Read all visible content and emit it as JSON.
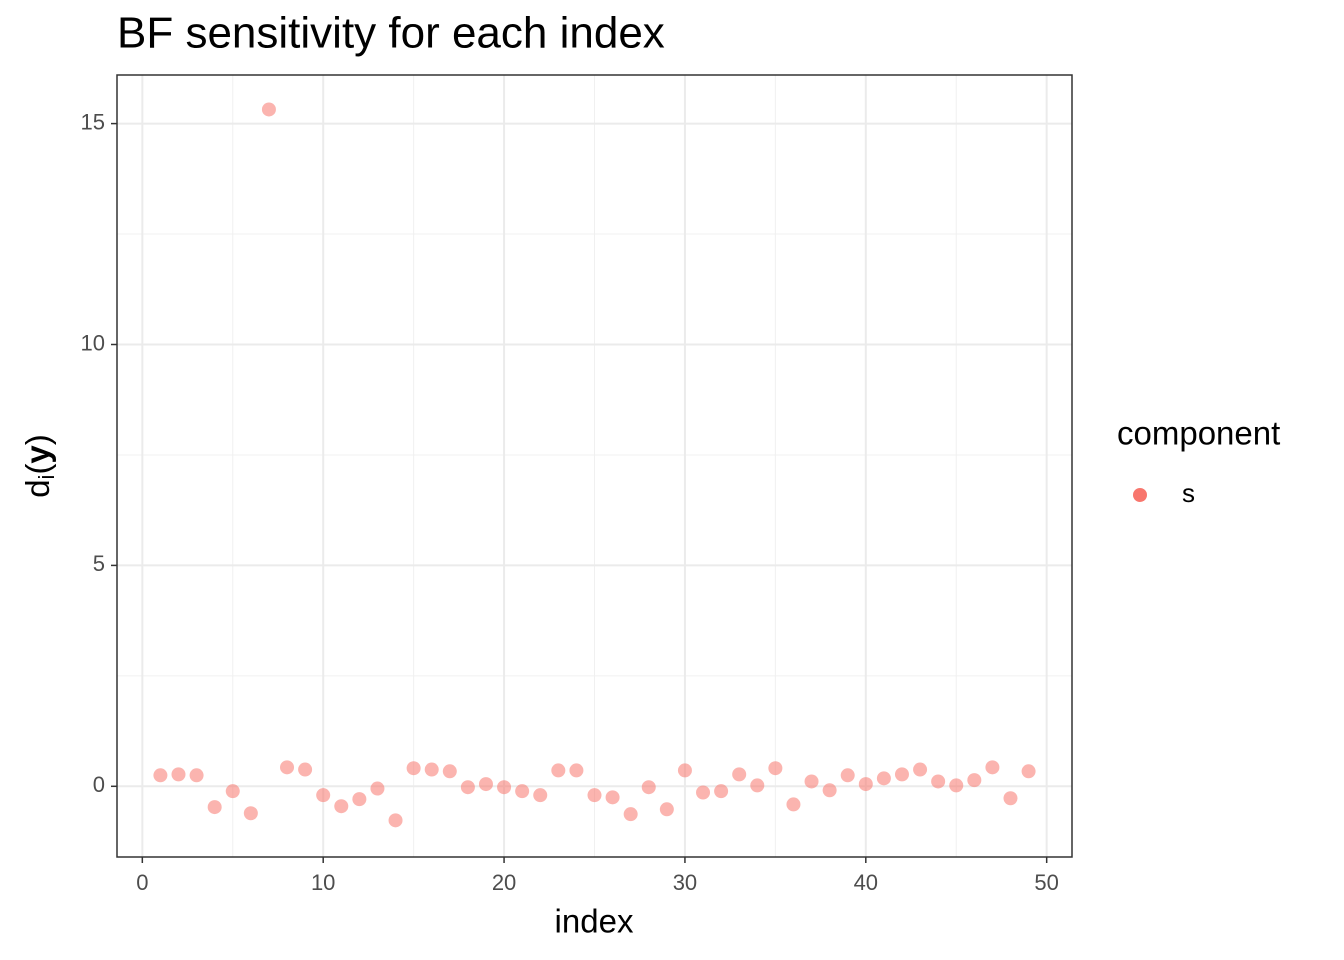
{
  "chart_data": {
    "type": "scatter",
    "title": "BF sensitivity for each index",
    "x_label": "index",
    "y_label_parts": [
      "d",
      "i",
      "(",
      "y",
      ")"
    ],
    "legend_title": "component",
    "legend_position": "right",
    "series": [
      {
        "name": "s",
        "color": "#F8766D",
        "alpha": 0.55,
        "x": [
          1,
          2,
          3,
          4,
          5,
          6,
          7,
          8,
          9,
          10,
          11,
          12,
          13,
          14,
          15,
          16,
          17,
          18,
          19,
          20,
          21,
          22,
          23,
          24,
          25,
          26,
          27,
          28,
          29,
          30,
          31,
          32,
          33,
          34,
          35,
          36,
          37,
          38,
          39,
          40,
          41,
          42,
          43,
          44,
          45,
          46,
          47,
          48,
          49
        ],
        "values": [
          0.25,
          0.27,
          0.25,
          -0.47,
          -0.11,
          -0.61,
          15.32,
          0.43,
          0.38,
          -0.2,
          -0.45,
          -0.29,
          -0.05,
          -0.77,
          0.41,
          0.38,
          0.34,
          -0.02,
          0.05,
          -0.02,
          -0.11,
          -0.2,
          0.36,
          0.36,
          -0.2,
          -0.25,
          -0.63,
          -0.02,
          -0.52,
          0.36,
          -0.14,
          -0.11,
          0.27,
          0.02,
          0.41,
          -0.41,
          0.11,
          -0.09,
          0.25,
          0.05,
          0.18,
          0.27,
          0.38,
          0.11,
          0.02,
          0.14,
          0.43,
          -0.27,
          0.34
        ]
      }
    ],
    "xlim": [
      -1.4,
      51.4
    ],
    "xticks": [
      0,
      10,
      20,
      30,
      40,
      50
    ],
    "ylim": [
      -1.6,
      16.1
    ],
    "yticks": [
      0,
      5,
      10,
      15
    ],
    "grid": true,
    "minor_grid": true
  }
}
